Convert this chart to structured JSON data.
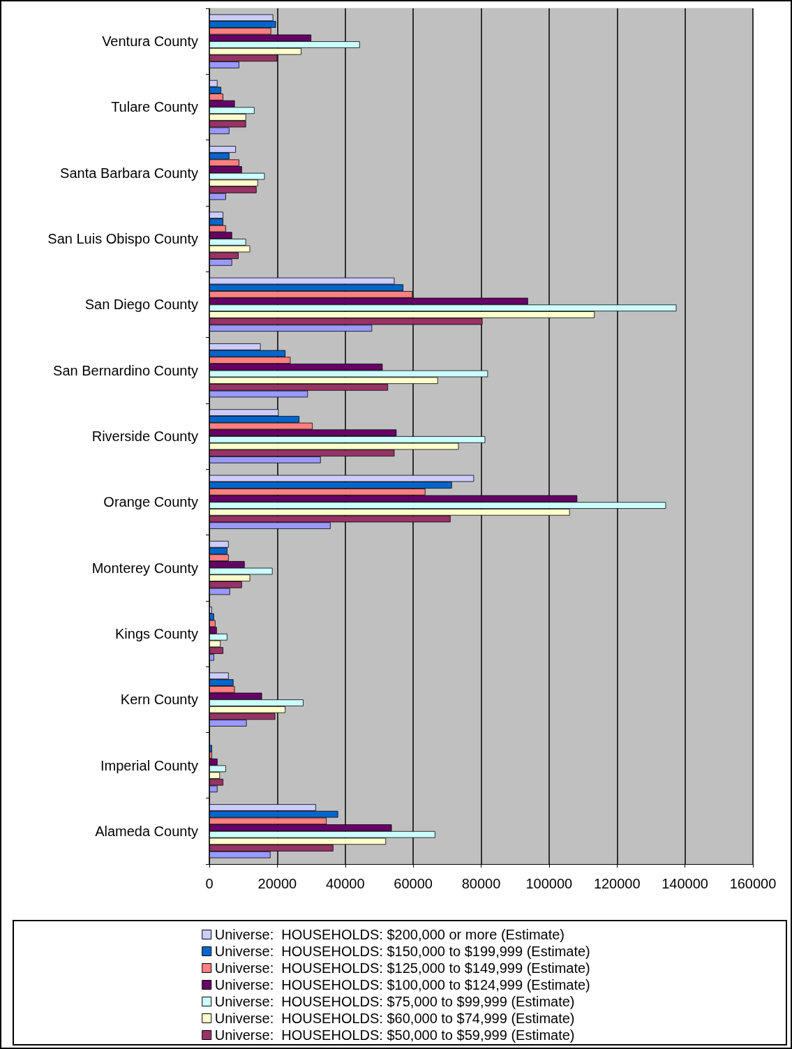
{
  "chart_data": {
    "type": "bar",
    "orientation": "horizontal",
    "categories": [
      "Ventura County",
      "Tulare County",
      "Santa Barbara County",
      "San Luis Obispo County",
      "San Diego County",
      "San Bernardino County",
      "Riverside County",
      "Orange County",
      "Monterey County",
      "Kings County",
      "Kern County",
      "Imperial County",
      "Alameda County"
    ],
    "series": [
      {
        "name": "Universe:  HOUSEHOLDS: $200,000 or more (Estimate)",
        "color": "#ccccff",
        "values": [
          18800,
          2400,
          7800,
          4100,
          54500,
          15100,
          20400,
          77900,
          5700,
          800,
          5700,
          null,
          31400
        ]
      },
      {
        "name": "Universe:  HOUSEHOLDS: $150,000 to $199,999 (Estimate)",
        "color": "#0066cc",
        "values": [
          19600,
          3500,
          5900,
          4100,
          57100,
          22400,
          26500,
          71400,
          5300,
          1400,
          7100,
          800,
          37900
        ]
      },
      {
        "name": "Universe:  HOUSEHOLDS: $125,000 to $149,999 (Estimate)",
        "color": "#ff8080",
        "values": [
          18200,
          4100,
          8800,
          4900,
          59800,
          23900,
          30400,
          63600,
          5700,
          1800,
          7500,
          800,
          34500
        ]
      },
      {
        "name": "Universe:  HOUSEHOLDS: $100,000 to $124,999 (Estimate)",
        "color": "#660066",
        "values": [
          30000,
          7500,
          9600,
          6700,
          93800,
          51000,
          55100,
          108300,
          10400,
          2200,
          15500,
          2400,
          53700
        ]
      },
      {
        "name": "Universe:  HOUSEHOLDS: $75,000 to $99,999 (Estimate)",
        "color": "#ccffff",
        "values": [
          44300,
          13300,
          16300,
          10800,
          137500,
          82000,
          81200,
          134400,
          18600,
          5300,
          27700,
          4900,
          66500
        ]
      },
      {
        "name": "Universe:  HOUSEHOLDS: $60,000 to $74,999 (Estimate)",
        "color": "#ffffcc",
        "values": [
          27100,
          10800,
          14300,
          12000,
          113400,
          67300,
          73400,
          106100,
          12000,
          3300,
          22400,
          3100,
          52000
        ]
      },
      {
        "name": "Universe:  HOUSEHOLDS: $50,000 to $59,999 (Estimate)",
        "color": "#993366",
        "values": [
          20000,
          10800,
          13900,
          8600,
          80400,
          52600,
          54500,
          71000,
          9600,
          4100,
          19400,
          4100,
          36500
        ]
      },
      {
        "color": "#9999ff",
        "values": [
          8800,
          5900,
          4900,
          6700,
          47900,
          29000,
          32800,
          35700,
          6100,
          1400,
          11000,
          2400,
          18000
        ]
      }
    ],
    "xlim": [
      0,
      160000
    ],
    "xticks": [
      0,
      20000,
      40000,
      60000,
      80000,
      100000,
      120000,
      140000,
      160000
    ],
    "grid": "x",
    "legend": "bottom"
  }
}
